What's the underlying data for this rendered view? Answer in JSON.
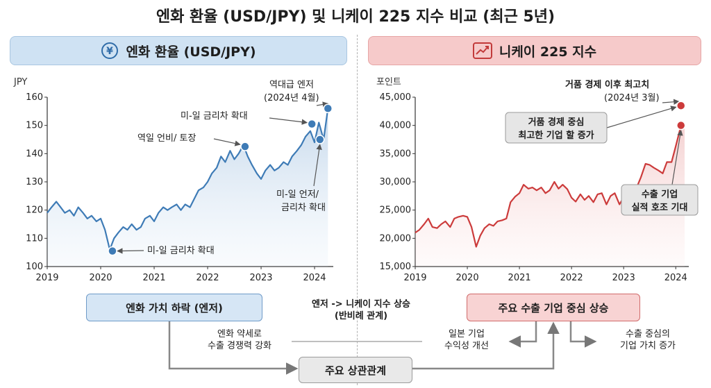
{
  "title": "엔화 환율 (USD/JPY) 및 니케이 225 지수 비교 (최근 5년)",
  "left_header": {
    "label": "엔화 환율 (USD/JPY)",
    "icon": "yen-icon"
  },
  "right_header": {
    "label": "니케이 225 지수",
    "icon": "trend-up-icon"
  },
  "colors": {
    "jpy_line": "#3e7bb6",
    "nikkei_line": "#cc3b3b",
    "blue_panel": "#cfe2f3",
    "red_panel": "#f6caca"
  },
  "chart_data": [
    {
      "type": "line",
      "ylabel": "JPY",
      "xlim": [
        2019,
        2024.35
      ],
      "ylim": [
        100,
        160
      ],
      "yticks": [
        100,
        110,
        120,
        130,
        140,
        150,
        160
      ],
      "xticks": [
        2019,
        2020,
        2021,
        2022,
        2023,
        2024
      ],
      "series": [
        {
          "x": [
            2019.0,
            2019.08,
            2019.17,
            2019.25,
            2019.33,
            2019.42,
            2019.5,
            2019.58,
            2019.67,
            2019.75,
            2019.83,
            2019.92,
            2020.0,
            2020.08,
            2020.17,
            2020.25,
            2020.33,
            2020.42,
            2020.5,
            2020.58,
            2020.67,
            2020.75,
            2020.83,
            2020.92,
            2021.0,
            2021.08,
            2021.17,
            2021.25,
            2021.33,
            2021.42,
            2021.5,
            2021.58,
            2021.67,
            2021.75,
            2021.83,
            2021.92,
            2022.0,
            2022.08,
            2022.17,
            2022.25,
            2022.33,
            2022.42,
            2022.5,
            2022.58,
            2022.67,
            2022.75,
            2022.83,
            2022.92,
            2023.0,
            2023.08,
            2023.17,
            2023.25,
            2023.33,
            2023.42,
            2023.5,
            2023.58,
            2023.67,
            2023.75,
            2023.83,
            2023.92,
            2024.0,
            2024.08,
            2024.17,
            2024.25
          ],
          "y": [
            119,
            121,
            123,
            121,
            119,
            120,
            118,
            121,
            119,
            117,
            118,
            116,
            117,
            113,
            106,
            110,
            112,
            114,
            113,
            115,
            113,
            114,
            117,
            118,
            116,
            119,
            121,
            120,
            121,
            122,
            120,
            122,
            121,
            124,
            127,
            128,
            130,
            133,
            135,
            139,
            137,
            141,
            138,
            140,
            143,
            139,
            136,
            133,
            131,
            134,
            136,
            134,
            135,
            137,
            136,
            139,
            141,
            143,
            146,
            148,
            144,
            151,
            145,
            156
          ]
        }
      ],
      "annotations": [
        {
          "x": 2020.22,
          "y": 105.5,
          "text": "미-일 금리차 확대"
        },
        {
          "x": 2022.7,
          "y": 142.5,
          "text": "역일 언비/ 토장"
        },
        {
          "x": 2023.95,
          "y": 150.5,
          "text": "미-일 금리차 확대"
        },
        {
          "x": 2024.1,
          "y": 145,
          "text": "미-일 언저/ 금리차 확대"
        },
        {
          "x": 2024.25,
          "y": 156,
          "text": "역대급 엔저 (2024년 4월)"
        }
      ]
    },
    {
      "type": "line",
      "ylabel": "포인트",
      "xlim": [
        2019,
        2024.25
      ],
      "ylim": [
        15000,
        45000
      ],
      "yticks": [
        15000,
        20000,
        25000,
        30000,
        35000,
        40000,
        45000
      ],
      "xticks": [
        2019,
        2020,
        2021,
        2022,
        2023,
        2024
      ],
      "series": [
        {
          "x": [
            2019.0,
            2019.08,
            2019.17,
            2019.25,
            2019.33,
            2019.42,
            2019.5,
            2019.58,
            2019.67,
            2019.75,
            2019.83,
            2019.92,
            2020.0,
            2020.08,
            2020.17,
            2020.25,
            2020.33,
            2020.42,
            2020.5,
            2020.58,
            2020.67,
            2020.75,
            2020.83,
            2020.92,
            2021.0,
            2021.08,
            2021.17,
            2021.25,
            2021.33,
            2021.42,
            2021.5,
            2021.58,
            2021.67,
            2021.75,
            2021.83,
            2021.92,
            2022.0,
            2022.08,
            2022.17,
            2022.25,
            2022.33,
            2022.42,
            2022.5,
            2022.58,
            2022.67,
            2022.75,
            2022.83,
            2022.92,
            2023.0,
            2023.08,
            2023.17,
            2023.25,
            2023.33,
            2023.42,
            2023.5,
            2023.58,
            2023.67,
            2023.75,
            2023.83,
            2023.92,
            2024.0,
            2024.08,
            2024.17
          ],
          "y": [
            21000,
            21500,
            22500,
            23500,
            22000,
            21800,
            22500,
            23000,
            22000,
            23500,
            23800,
            24000,
            23800,
            22000,
            18500,
            20500,
            21800,
            22500,
            22200,
            23000,
            23200,
            23500,
            26400,
            27400,
            28000,
            29500,
            28800,
            29000,
            28500,
            29000,
            28000,
            28500,
            30000,
            28800,
            29500,
            28700,
            27200,
            26500,
            27800,
            26800,
            27500,
            26400,
            27800,
            28000,
            26000,
            27500,
            28000,
            26000,
            27300,
            27500,
            28000,
            29000,
            30800,
            33200,
            33000,
            32500,
            32000,
            31500,
            33500,
            33500,
            36300,
            39200,
            40000
          ]
        }
      ],
      "annotations": [
        {
          "x": 2024.1,
          "y": 43500,
          "text": "거품 경제 이후 최고치 (2024년 3월)"
        },
        {
          "x": 2024.1,
          "y": 40000,
          "text": "수출 기업 실적 호조 기대"
        },
        {
          "text": "거품 경제 중심 최고한 기업 할 증가"
        }
      ]
    }
  ],
  "left_annotations": {
    "low": "미-일 금리차 확대",
    "mid": "역일 언비/ 토장",
    "gap_line": "미-일 금리차 확대",
    "gap2_a": "미-일 언저/",
    "gap2_b": "금리차 확대",
    "peak_a": "역대급 엔저",
    "peak_b": "(2024년 4월)"
  },
  "right_annotations": {
    "peak_a": "거품 경제 이후 최고치",
    "peak_b": "(2024년 3월)",
    "box1_a": "거품 경제 중심",
    "box1_b": "최고한 기업 할 증가",
    "box2_a": "수출 기업",
    "box2_b": "실적 호조 기대"
  },
  "flow": {
    "blue_box": "엔화 가치 하락 (엔저)",
    "red_box": "주요 수출 기업 중심 상승",
    "gray_box": "주요 상관관계",
    "center_note_a": "엔저 -> 니케이 지수 상승",
    "center_note_b": "(반비례 관계)",
    "left_note_a": "엔화 약세로",
    "left_note_b": "수출 경쟁력 강화",
    "mid_note_a": "일본 기업",
    "mid_note_b": "수익성 개선",
    "right_note_a": "수출 중심의",
    "right_note_b": "기업 가치 증가"
  }
}
